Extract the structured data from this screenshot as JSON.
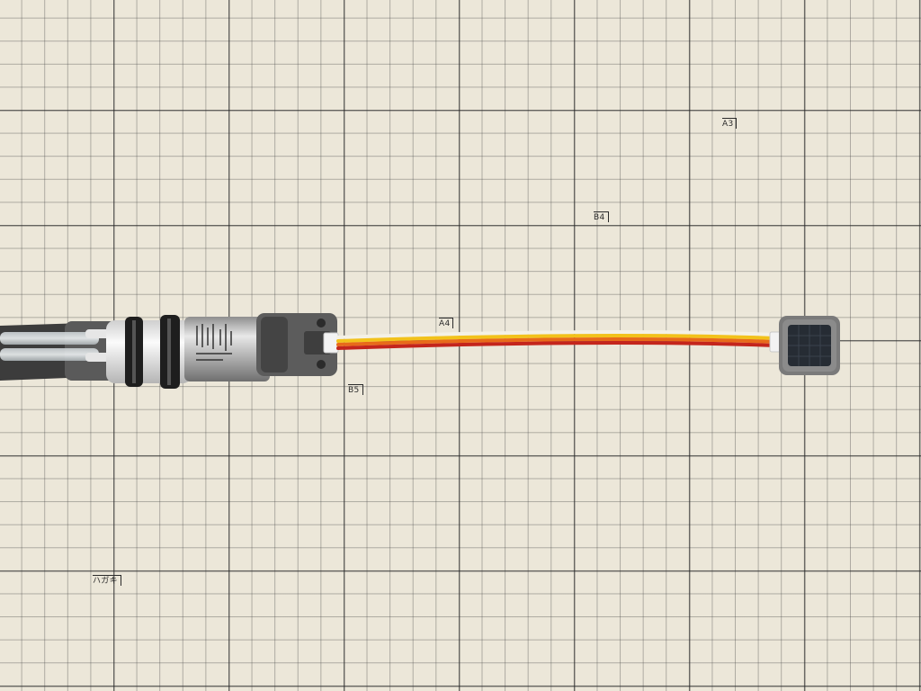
{
  "paper_marks": {
    "a3": "A3",
    "b4": "B4",
    "a4": "A4",
    "b5": "B5",
    "postcard": "ハガキ"
  },
  "colors": {
    "paper": "#ece7d9",
    "grid_line": "#3a3a3a",
    "pump_body": "#d9d9d9",
    "pump_frame": "#5c5c5c",
    "wire_white": "#f4f1e6",
    "wire_yellow": "#f2c21b",
    "wire_orange": "#e86a1a",
    "wire_red": "#c4251c",
    "sensor_frame": "#777777",
    "sensor_face": "#2a3038"
  },
  "objects": {
    "pump": "water-pump-motor-with-tubing",
    "cable": "four-wire-grove-cable",
    "sensor": "square-sensor-module"
  }
}
